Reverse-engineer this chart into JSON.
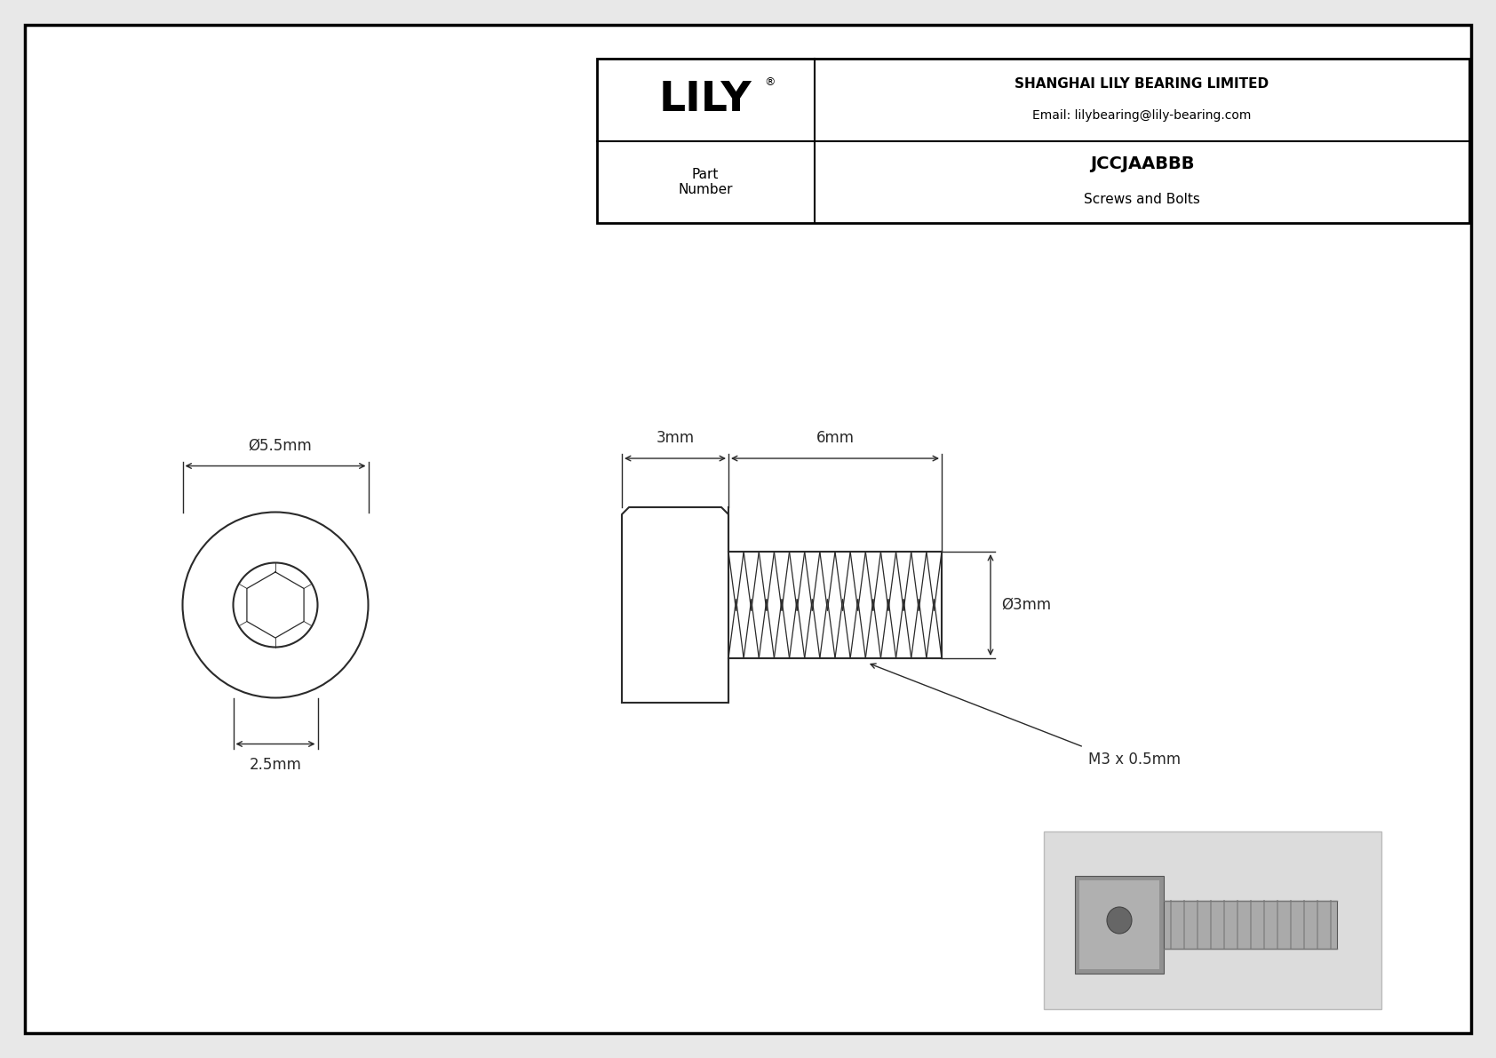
{
  "bg_color": "#e8e8e8",
  "drawing_bg": "#ffffff",
  "border_color": "#000000",
  "line_color": "#2a2a2a",
  "dim_color": "#2a2a2a",
  "company": "SHANGHAI LILY BEARING LIMITED",
  "email": "Email: lilybearing@lily-bearing.com",
  "part_number_label": "Part\nNumber",
  "part_number": "JCCJAABBB",
  "part_type": "Screws and Bolts",
  "thread_spec": "M3 x 0.5mm",
  "diam_label_head": "Ø5.5mm",
  "diam_label_shaft": "Ø3mm",
  "dim_3mm": "3mm",
  "dim_6mm": "6mm",
  "dim_25mm": "2.5mm"
}
